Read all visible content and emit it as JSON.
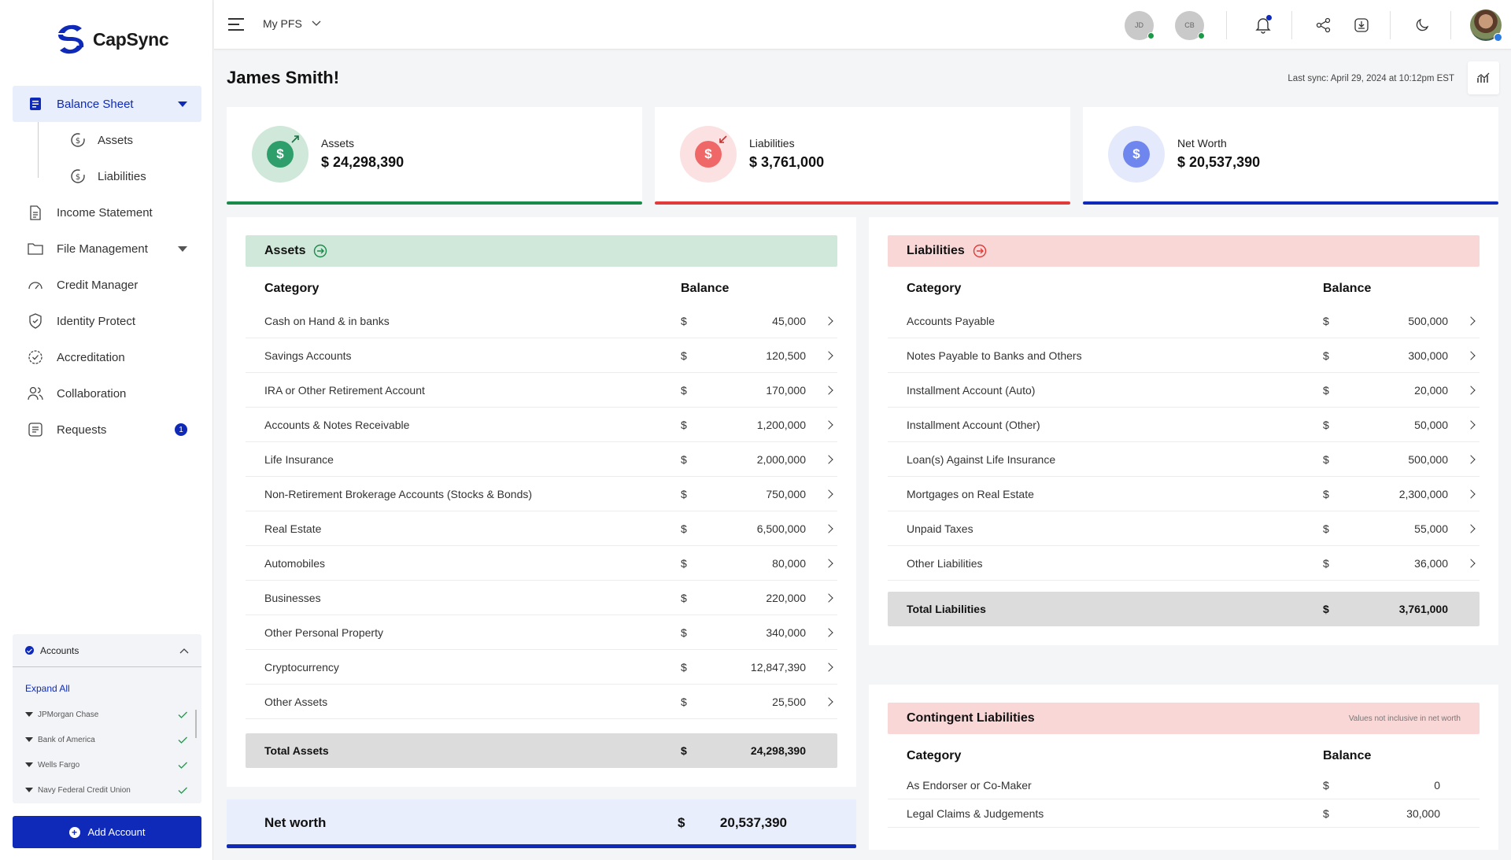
{
  "app": {
    "name": "CapSync"
  },
  "colors": {
    "accent": "#0f2ab8",
    "assets": "#1a8a4a",
    "liabilities": "#e03a3a",
    "networth": "#0f2ab8"
  },
  "sidebar": {
    "balance_sheet": "Balance Sheet",
    "sub_items": [
      {
        "label": "Assets",
        "icon": "dollar-refresh-icon"
      },
      {
        "label": "Liabilities",
        "icon": "dollar-refresh-icon"
      }
    ],
    "items": [
      {
        "label": "Income Statement",
        "icon": "document-icon"
      },
      {
        "label": "File Management",
        "icon": "folder-icon"
      },
      {
        "label": "Credit Manager",
        "icon": "gauge-icon"
      },
      {
        "label": "Identity Protect",
        "icon": "shield-icon"
      },
      {
        "label": "Accreditation",
        "icon": "badge-check-icon"
      },
      {
        "label": "Collaboration",
        "icon": "users-icon"
      },
      {
        "label": "Requests",
        "icon": "inbox-icon",
        "badge": "1"
      }
    ],
    "accounts": {
      "title": "Accounts",
      "expand_all": "Expand All",
      "list": [
        "JPMorgan Chase",
        "Bank of America",
        "Wells Fargo",
        "Navy Federal Credit Union"
      ]
    },
    "add_account": "Add Account"
  },
  "topbar": {
    "selector": "My PFS",
    "avatars": [
      "JD",
      "CB"
    ]
  },
  "header": {
    "title": "James Smith!",
    "last_sync": "Last sync: April 29, 2024 at 10:12pm EST"
  },
  "summary": {
    "assets": {
      "label": "Assets",
      "value": "$  24,298,390"
    },
    "liabilities": {
      "label": "Liabilities",
      "value": "$  3,761,000"
    },
    "networth": {
      "label": "Net Worth",
      "value": "$  20,537,390"
    }
  },
  "assets_table": {
    "title": "Assets",
    "col_category": "Category",
    "col_balance": "Balance",
    "rows": [
      {
        "category": "Cash on Hand & in banks",
        "currency": "$",
        "amount": "45,000"
      },
      {
        "category": "Savings Accounts",
        "currency": "$",
        "amount": "120,500"
      },
      {
        "category": "IRA or Other Retirement Account",
        "currency": "$",
        "amount": "170,000"
      },
      {
        "category": "Accounts & Notes Receivable",
        "currency": "$",
        "amount": "1,200,000"
      },
      {
        "category": "Life Insurance",
        "currency": "$",
        "amount": "2,000,000"
      },
      {
        "category": "Non-Retirement Brokerage Accounts (Stocks & Bonds)",
        "currency": "$",
        "amount": "750,000"
      },
      {
        "category": "Real Estate",
        "currency": "$",
        "amount": "6,500,000"
      },
      {
        "category": "Automobiles",
        "currency": "$",
        "amount": "80,000"
      },
      {
        "category": "Businesses",
        "currency": "$",
        "amount": "220,000"
      },
      {
        "category": "Other Personal Property",
        "currency": "$",
        "amount": "340,000"
      },
      {
        "category": "Cryptocurrency",
        "currency": "$",
        "amount": "12,847,390"
      },
      {
        "category": "Other Assets",
        "currency": "$",
        "amount": "25,500"
      }
    ],
    "total_label": "Total Assets",
    "total_currency": "$",
    "total_amount": "24,298,390"
  },
  "networth_row": {
    "label": "Net worth",
    "currency": "$",
    "amount": "20,537,390"
  },
  "liabilities_table": {
    "title": "Liabilities",
    "col_category": "Category",
    "col_balance": "Balance",
    "rows": [
      {
        "category": "Accounts Payable",
        "currency": "$",
        "amount": "500,000"
      },
      {
        "category": "Notes Payable to Banks and Others",
        "currency": "$",
        "amount": "300,000"
      },
      {
        "category": "Installment Account (Auto)",
        "currency": "$",
        "amount": "20,000"
      },
      {
        "category": "Installment Account (Other)",
        "currency": "$",
        "amount": "50,000"
      },
      {
        "category": "Loan(s) Against Life Insurance",
        "currency": "$",
        "amount": "500,000"
      },
      {
        "category": "Mortgages on Real Estate",
        "currency": "$",
        "amount": "2,300,000"
      },
      {
        "category": "Unpaid Taxes",
        "currency": "$",
        "amount": "55,000"
      },
      {
        "category": "Other Liabilities",
        "currency": "$",
        "amount": "36,000"
      }
    ],
    "total_label": "Total Liabilities",
    "total_currency": "$",
    "total_amount": "3,761,000"
  },
  "contingent_table": {
    "title": "Contingent Liabilities",
    "note": "Values not inclusive in net worth",
    "col_category": "Category",
    "col_balance": "Balance",
    "rows": [
      {
        "category": "As Endorser or Co-Maker",
        "currency": "$",
        "amount": "0"
      },
      {
        "category": "Legal Claims & Judgements",
        "currency": "$",
        "amount": "30,000"
      }
    ]
  }
}
